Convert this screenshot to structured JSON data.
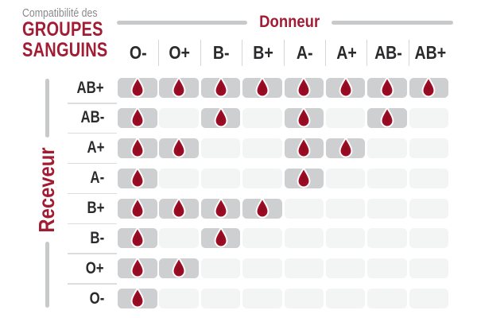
{
  "title": {
    "kicker": "Compatibilité des",
    "line1": "GROUPES",
    "line2": "SANGUINS"
  },
  "axes": {
    "donor": "Donneur",
    "receiver": "Receveur"
  },
  "icons": {
    "compatible": "blood-drop-icon"
  },
  "chart_data": {
    "type": "table",
    "title": "Compatibilité des groupes sanguins",
    "columns_axis_label": "Donneur",
    "rows_axis_label": "Receveur",
    "columns": [
      "O-",
      "O+",
      "B-",
      "B+",
      "A-",
      "A+",
      "AB-",
      "AB+"
    ],
    "rows": [
      "AB+",
      "AB-",
      "A+",
      "A-",
      "B+",
      "B-",
      "O+",
      "O-"
    ],
    "matrix": [
      [
        1,
        1,
        1,
        1,
        1,
        1,
        1,
        1
      ],
      [
        1,
        0,
        1,
        0,
        1,
        0,
        1,
        0
      ],
      [
        1,
        1,
        0,
        0,
        1,
        1,
        0,
        0
      ],
      [
        1,
        0,
        0,
        0,
        1,
        0,
        0,
        0
      ],
      [
        1,
        1,
        1,
        1,
        0,
        0,
        0,
        0
      ],
      [
        1,
        0,
        1,
        0,
        0,
        0,
        0,
        0
      ],
      [
        1,
        1,
        0,
        0,
        0,
        0,
        0,
        0
      ],
      [
        1,
        0,
        0,
        0,
        0,
        0,
        0,
        0
      ]
    ],
    "cell_marker": "blood-drop",
    "filled_cell_color": "#CDCFD0",
    "empty_cell_color": "#F3F4F4"
  },
  "colors": {
    "accent_red": "#A21C33",
    "drop_red": "#A90F2A",
    "drop_dark_red": "#8C0A1F",
    "cell_filled_gray": "#CDCFD0",
    "cell_empty_gray": "#F3F4F4",
    "axis_line_gray": "#C8C9CB",
    "header_text": "#2B2B2D",
    "kicker_gray": "#898A8C"
  }
}
